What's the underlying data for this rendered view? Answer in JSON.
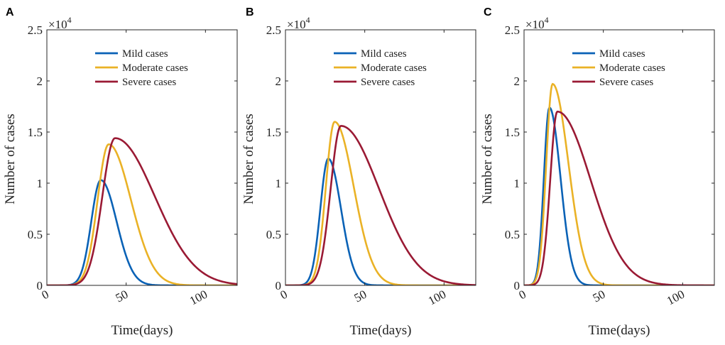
{
  "chart_data": [
    {
      "panel": "A",
      "type": "line",
      "xlabel": "Time(days)",
      "ylabel": "Number of cases",
      "xlim": [
        0,
        120
      ],
      "ylim": [
        0,
        25000
      ],
      "xticks": [
        0,
        50,
        100
      ],
      "xtick_labels": [
        "0",
        "50",
        "100"
      ],
      "yticks": [
        0,
        5000,
        10000,
        15000,
        20000,
        25000
      ],
      "ytick_labels": [
        "0",
        "0.5",
        "1",
        "1.5",
        "2",
        "2.5"
      ],
      "y_multiplier_base": "×10",
      "y_multiplier_exp": "4",
      "legend": [
        "Mild cases",
        "Moderate cases",
        "Severe cases"
      ],
      "series": [
        {
          "name": "Mild cases",
          "color": "#0a62b6",
          "peak_x": 34,
          "peak_y": 10300,
          "rise": 6,
          "fall": 10
        },
        {
          "name": "Moderate cases",
          "color": "#eab226",
          "peak_x": 39,
          "peak_y": 13800,
          "rise": 7,
          "fall": 14
        },
        {
          "name": "Severe cases",
          "color": "#9a1a34",
          "peak_x": 43,
          "peak_y": 14400,
          "rise": 8,
          "fall": 25
        }
      ]
    },
    {
      "panel": "B",
      "type": "line",
      "xlabel": "Time(days)",
      "ylabel": "Number of cases",
      "xlim": [
        0,
        120
      ],
      "ylim": [
        0,
        25000
      ],
      "xticks": [
        0,
        50,
        100
      ],
      "xtick_labels": [
        "0",
        "50",
        "100"
      ],
      "yticks": [
        0,
        5000,
        10000,
        15000,
        20000,
        25000
      ],
      "ytick_labels": [
        "0",
        "0.5",
        "1",
        "1.5",
        "2",
        "2.5"
      ],
      "y_multiplier_base": "×10",
      "y_multiplier_exp": "4",
      "legend": [
        "Mild cases",
        "Moderate cases",
        "Severe cases"
      ],
      "series": [
        {
          "name": "Mild cases",
          "color": "#0a62b6",
          "peak_x": 27,
          "peak_y": 12400,
          "rise": 5,
          "fall": 8
        },
        {
          "name": "Moderate cases",
          "color": "#eab226",
          "peak_x": 31,
          "peak_y": 16000,
          "rise": 5.5,
          "fall": 12
        },
        {
          "name": "Severe cases",
          "color": "#9a1a34",
          "peak_x": 35,
          "peak_y": 15600,
          "rise": 6.5,
          "fall": 24
        }
      ]
    },
    {
      "panel": "C",
      "type": "line",
      "xlabel": "Time(days)",
      "ylabel": "Number of cases",
      "xlim": [
        0,
        120
      ],
      "ylim": [
        0,
        25000
      ],
      "xticks": [
        0,
        50,
        100
      ],
      "xtick_labels": [
        "0",
        "50",
        "100"
      ],
      "yticks": [
        0,
        5000,
        10000,
        15000,
        20000,
        25000
      ],
      "ytick_labels": [
        "0",
        "0.5",
        "1",
        "1.5",
        "2",
        "2.5"
      ],
      "y_multiplier_base": "×10",
      "y_multiplier_exp": "4",
      "legend": [
        "Mild cases",
        "Moderate cases",
        "Severe cases"
      ],
      "series": [
        {
          "name": "Mild cases",
          "color": "#0a62b6",
          "peak_x": 16,
          "peak_y": 17400,
          "rise": 3.5,
          "fall": 7
        },
        {
          "name": "Moderate cases",
          "color": "#eab226",
          "peak_x": 18,
          "peak_y": 19700,
          "rise": 4,
          "fall": 10
        },
        {
          "name": "Severe cases",
          "color": "#9a1a34",
          "peak_x": 21,
          "peak_y": 17000,
          "rise": 4.5,
          "fall": 21
        }
      ]
    }
  ]
}
